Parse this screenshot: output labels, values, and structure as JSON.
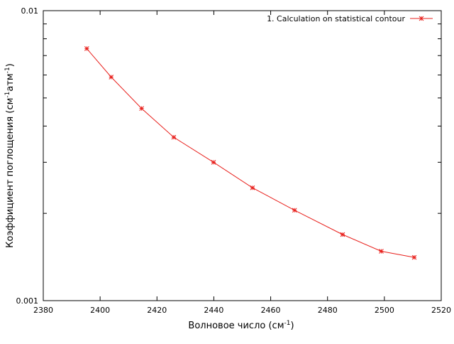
{
  "chart_data": {
    "type": "line",
    "title": "",
    "xlabel": {
      "main": "Волновое число (см",
      "sup": "-1",
      "end": ")"
    },
    "ylabel": {
      "p1": "Коэффициент поглощения (см",
      "s1": "-1",
      "p2": "атм",
      "s2": "-1",
      "p3": ")"
    },
    "xlim": [
      2380,
      2520
    ],
    "ylim": [
      0.001,
      0.01
    ],
    "yscale": "log",
    "x_ticks": [
      2380,
      2400,
      2420,
      2440,
      2460,
      2480,
      2500,
      2520
    ],
    "x_tick_labels": [
      "2380",
      "2400",
      "2420",
      "2440",
      "2460",
      "2480",
      "2500",
      "2520"
    ],
    "y_major_ticks": [
      0.001,
      0.01
    ],
    "y_tick_labels": [
      "0.001",
      "0.01"
    ],
    "y_minor_ticks": [
      0.002,
      0.003,
      0.004,
      0.005,
      0.006,
      0.007,
      0.008,
      0.009
    ],
    "grid": false,
    "legend_position": "top-right",
    "series": [
      {
        "name": "1. Calculation on statistical contour",
        "color": "#e8201c",
        "marker": "x-cross",
        "x": [
          2395.3,
          2403.9,
          2414.6,
          2425.9,
          2439.9,
          2453.6,
          2468.4,
          2485.3,
          2498.9,
          2510.5
        ],
        "y": [
          0.0074,
          0.0059,
          0.0046,
          0.00366,
          0.003,
          0.00245,
          0.00205,
          0.00169,
          0.00148,
          0.00141
        ]
      }
    ]
  }
}
